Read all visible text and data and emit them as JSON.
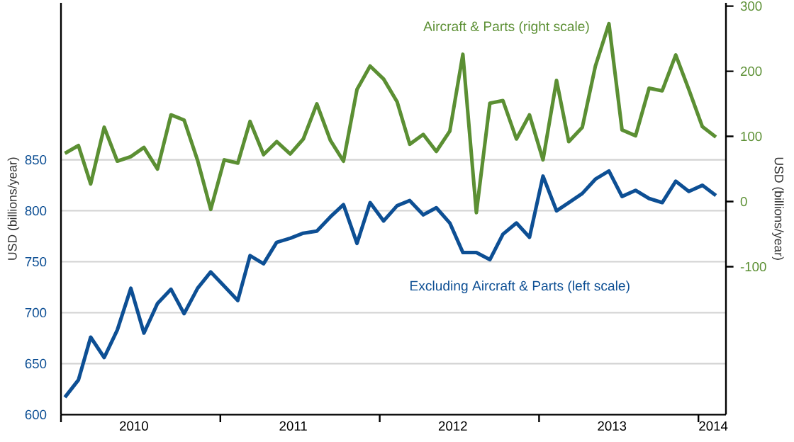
{
  "chart_data": {
    "type": "line",
    "ylabel": "USD (billions/year)",
    "y2label": "USD (billions/year)",
    "x": [
      "2010-01-10",
      "2010-02-10",
      "2010-03-10",
      "2010-04-10",
      "2010-05-10",
      "2010-06-10",
      "2010-07-10",
      "2010-08-10",
      "2010-09-10",
      "2010-10-10",
      "2010-11-10",
      "2010-12-10",
      "2011-01-10",
      "2011-02-10",
      "2011-03-10",
      "2011-04-10",
      "2011-05-10",
      "2011-06-10",
      "2011-07-10",
      "2011-08-10",
      "2011-09-10",
      "2011-10-10",
      "2011-11-10",
      "2011-12-10",
      "2012-01-10",
      "2012-02-10",
      "2012-03-10",
      "2012-04-10",
      "2012-05-10",
      "2012-06-10",
      "2012-07-10",
      "2012-08-10",
      "2012-09-10",
      "2012-10-10",
      "2012-11-10",
      "2012-12-10",
      "2013-01-10",
      "2013-02-10",
      "2013-03-10",
      "2013-04-10",
      "2013-05-10",
      "2013-06-10",
      "2013-07-10",
      "2013-08-10",
      "2013-09-10",
      "2013-10-10",
      "2013-11-10",
      "2013-12-10",
      "2014-01-10",
      "2014-02-10"
    ],
    "xlim": [
      "2010-01-01",
      "2014-03-05"
    ],
    "xticks": [
      {
        "value": "2010-01-01",
        "label": null
      },
      {
        "value": "2011-01-01",
        "label": null
      },
      {
        "value": "2012-01-01",
        "label": null
      },
      {
        "value": "2013-01-01",
        "label": null
      },
      {
        "value": "2014-01-01",
        "label": null
      },
      {
        "value": "2010-06-17",
        "label": "2010"
      },
      {
        "value": "2011-06-17",
        "label": "2011"
      },
      {
        "value": "2012-06-17",
        "label": "2012"
      },
      {
        "value": "2013-06-17",
        "label": "2013"
      },
      {
        "value": "2014-02-04",
        "label": "2014"
      }
    ],
    "ylim": [
      600,
      1004
    ],
    "yticks": [
      600,
      650,
      700,
      750,
      800,
      850
    ],
    "y2lim": [
      -327,
      305
    ],
    "y2ticks": [
      -100,
      0,
      100,
      200,
      300
    ],
    "grid": "y",
    "line_style": "solid",
    "series": [
      {
        "name": "Aircraft & Parts (right scale)",
        "color": "#5b8f33",
        "axis": "y2",
        "values": [
          74,
          86,
          27,
          114,
          62,
          69,
          83,
          50,
          133,
          125,
          63,
          -12,
          64,
          59,
          123,
          72,
          92,
          73,
          96,
          150,
          94,
          62,
          172,
          208,
          188,
          153,
          88,
          103,
          77,
          108,
          226,
          -17,
          151,
          155,
          96,
          133,
          64,
          186,
          92,
          114,
          208,
          273,
          110,
          101,
          174,
          170,
          225,
          172,
          115,
          99
        ]
      },
      {
        "name": "Excluding Aircraft & Parts (left scale)",
        "color": "#0d4f94",
        "values": [
          617,
          634,
          676,
          656,
          683,
          724,
          680,
          709,
          723,
          699,
          724,
          740,
          726,
          712,
          756,
          748,
          769,
          773,
          778,
          780,
          794,
          806,
          768,
          808,
          790,
          805,
          810,
          796,
          803,
          788,
          759,
          759,
          752,
          777,
          788,
          774,
          834,
          800,
          808,
          817,
          831,
          839,
          814,
          820,
          812,
          808,
          829,
          819,
          825,
          815
        ]
      }
    ]
  }
}
